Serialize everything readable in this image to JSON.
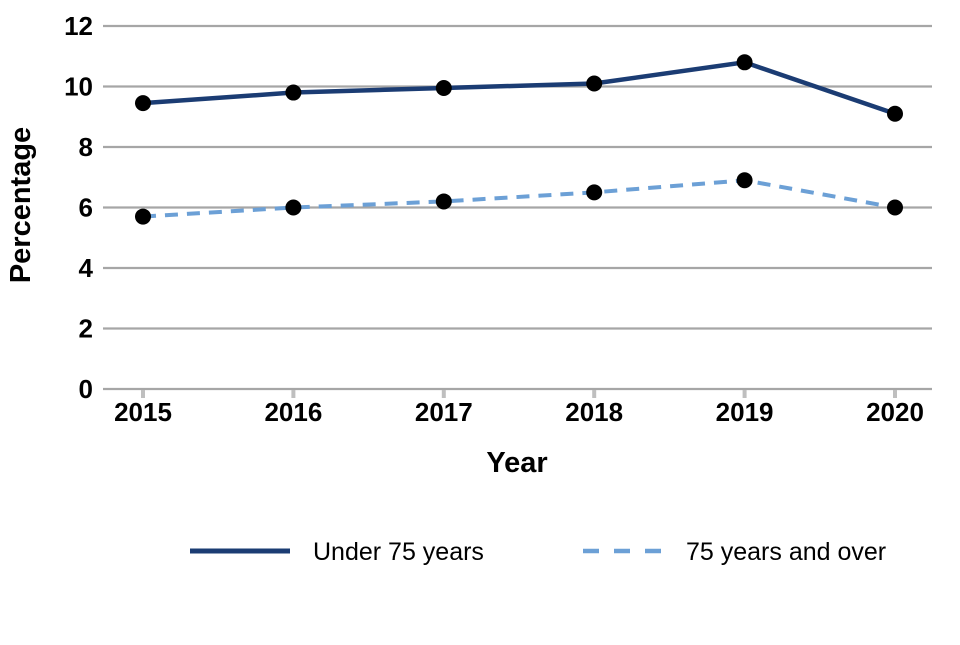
{
  "chart_data": {
    "type": "line",
    "title": "",
    "categories": [
      "2015",
      "2016",
      "2017",
      "2018",
      "2019",
      "2020"
    ],
    "series": [
      {
        "name": "Under 75 years",
        "values": [
          9.45,
          9.8,
          9.95,
          10.1,
          10.8,
          9.1
        ],
        "color": "#1B3C73",
        "line_style": "solid"
      },
      {
        "name": "75 years and over",
        "values": [
          5.7,
          6.0,
          6.2,
          6.5,
          6.9,
          6.0
        ],
        "color": "#6CA0D6",
        "line_style": "dashed"
      }
    ],
    "xlabel": "Year",
    "ylabel": "Percentage",
    "ylim": [
      0,
      12
    ],
    "ytick_step": 2,
    "grid": "horizontal",
    "legend_position": "bottom",
    "marker": {
      "shape": "circle",
      "color": "#000000"
    },
    "colors": {
      "gridline": "#A6A6A6",
      "axis_tick": "#BFBFBF",
      "text": "#000000",
      "background": "#FFFFFF"
    }
  }
}
